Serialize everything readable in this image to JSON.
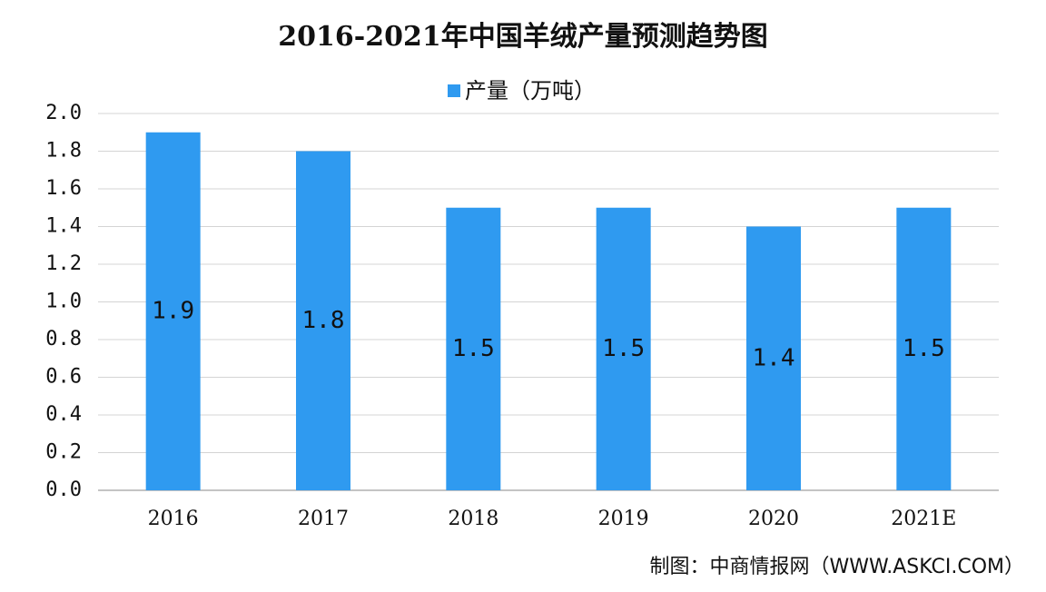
{
  "chart_data": {
    "type": "bar",
    "title": "2016-2021年中国羊绒产量预测趋势图",
    "categories": [
      "2016",
      "2017",
      "2018",
      "2019",
      "2020",
      "2021E"
    ],
    "series": [
      {
        "name": "产量（万吨）",
        "color": "#2f9af0",
        "values": [
          1.9,
          1.8,
          1.5,
          1.5,
          1.4,
          1.5
        ]
      }
    ],
    "ylim": [
      0,
      2
    ],
    "yticks": [
      {
        "value": 0,
        "label": "0.0"
      },
      0.2,
      0.4,
      0.6,
      0.8,
      {
        "value": 1,
        "label": "1.0"
      },
      1.2,
      1.4,
      1.6,
      1.8,
      {
        "value": 2,
        "label": "2.0"
      }
    ],
    "grid": true,
    "legend": "top",
    "source": "制图：中商情报网（WWW.ASKCI.COM）"
  }
}
